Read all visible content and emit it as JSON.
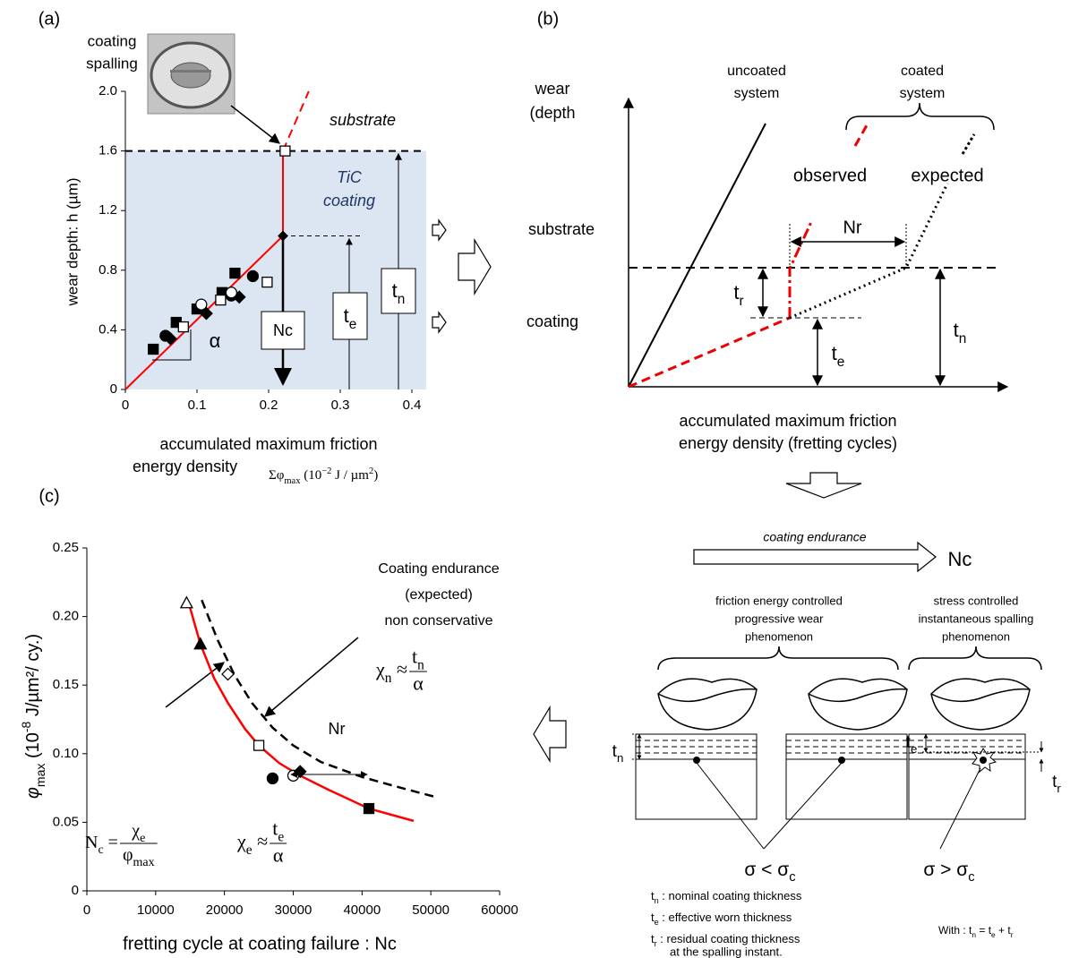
{
  "chart_data": [
    {
      "type": "scatter",
      "panel_label": "(a)",
      "y_label": "wear depth: h (µm)",
      "x_label": [
        "accumulated maximum friction",
        "energy density"
      ],
      "x_unit": [
        {
          "t": "Σφ"
        },
        {
          "sub": "max"
        },
        {
          "t": " (10"
        },
        {
          "sup": "−2"
        },
        {
          "t": " J / µm"
        },
        {
          "sup": "2"
        },
        {
          "t": ")"
        }
      ],
      "xlim": [
        0,
        0.42
      ],
      "ylim": [
        0,
        2
      ],
      "xticks": [
        0,
        0.1,
        0.2,
        0.3,
        0.4
      ],
      "yticks": [
        0,
        0.4,
        0.8,
        1.2,
        1.6,
        {
          "value": 2,
          "label": "2.0"
        }
      ],
      "series": [
        {
          "marker": "square",
          "filled": true,
          "color": "#000000",
          "x": [
            0.039,
            0.071,
            0.1,
            0.135,
            0.153
          ],
          "values": [
            0.27,
            0.45,
            0.54,
            0.65,
            0.78
          ]
        },
        {
          "marker": "circle",
          "filled": true,
          "color": "#000000",
          "x": [
            0.056,
            0.148,
            0.178
          ],
          "values": [
            0.36,
            0.63,
            0.76
          ]
        },
        {
          "marker": "diamond",
          "filled": true,
          "color": "#000000",
          "x": [
            0.063,
            0.113,
            0.159
          ],
          "values": [
            0.34,
            0.51,
            0.62
          ]
        },
        {
          "marker": "square",
          "filled": false,
          "color": "#000000",
          "x": [
            0.081,
            0.133,
            0.198,
            0.223
          ],
          "values": [
            0.42,
            0.6,
            0.72,
            1.6
          ]
        },
        {
          "marker": "circle",
          "filled": false,
          "color": "#000000",
          "x": [
            0.106,
            0.148
          ],
          "values": [
            0.57,
            0.65
          ]
        }
      ],
      "fit_line": {
        "color": "#ff0000",
        "x": [
          0,
          0.22,
          0.22
        ],
        "values": [
          0,
          1.03,
          1.6
        ]
      },
      "extrapolation": {
        "color": "#ff0000",
        "x": [
          0.22,
          0.256
        ],
        "values": [
          1.6,
          2.0
        ]
      },
      "transition": {
        "x": 0.22,
        "y": 1.03
      },
      "spalling_threshold": 1.6,
      "coating_region_color": "#dce6f2",
      "annotations": {
        "coating_spalling": [
          "coating",
          "spalling"
        ],
        "substrate": "substrate",
        "tic_coating": [
          "TiC",
          "coating"
        ],
        "slope": "α",
        "nc": "Nc",
        "te": [
          {
            "t": "t"
          },
          {
            "sub": "e"
          }
        ],
        "tn": [
          {
            "t": "t"
          },
          {
            "sub": "n"
          }
        ]
      }
    },
    {
      "type": "scatter",
      "panel_label": "(c)",
      "y_label": [
        {
          "i": "φ"
        },
        {
          "sub": "max"
        },
        {
          "t": " (10"
        },
        {
          "sup": "-8"
        },
        {
          "t": " J/µm²/ cy.)"
        }
      ],
      "x_label": "fretting cycle at coating failure : Nc",
      "xlim": [
        0,
        60000
      ],
      "ylim": [
        0,
        0.25
      ],
      "xticks": [
        0,
        10000,
        20000,
        30000,
        40000,
        50000,
        60000
      ],
      "yticks": [
        0,
        0.05,
        {
          "value": 0.1,
          "label": "0.10"
        },
        0.15,
        {
          "value": 0.2,
          "label": "0.20"
        },
        0.25
      ],
      "series": [
        {
          "marker": "triangle",
          "filled": false,
          "color": "#000000",
          "x": [
            14500
          ],
          "values": [
            0.21
          ]
        },
        {
          "marker": "triangle",
          "filled": true,
          "color": "#000000",
          "x": [
            16500
          ],
          "values": [
            0.18
          ]
        },
        {
          "marker": "diamond",
          "filled": false,
          "color": "#000000",
          "x": [
            20500
          ],
          "values": [
            0.158
          ]
        },
        {
          "marker": "square",
          "filled": false,
          "color": "#000000",
          "x": [
            25000
          ],
          "values": [
            0.106
          ]
        },
        {
          "marker": "circle",
          "filled": true,
          "color": "#000000",
          "x": [
            27000
          ],
          "values": [
            0.082
          ]
        },
        {
          "marker": "circle",
          "filled": false,
          "color": "#000000",
          "x": [
            30000
          ],
          "values": [
            0.084
          ]
        },
        {
          "marker": "diamond",
          "filled": true,
          "color": "#000000",
          "x": [
            31000
          ],
          "values": [
            0.087
          ]
        },
        {
          "marker": "square",
          "filled": true,
          "color": "#000000",
          "x": [
            41000
          ],
          "values": [
            0.06
          ]
        }
      ],
      "model_curve": {
        "color": "#ff0000",
        "dashed": false,
        "x": [
          14800,
          16500,
          18500,
          20500,
          23000,
          25000,
          28000,
          31000,
          35000,
          41000,
          47500
        ],
        "values": [
          0.21,
          0.18,
          0.155,
          0.137,
          0.118,
          0.106,
          0.093,
          0.084,
          0.074,
          0.06,
          0.051
        ]
      },
      "expected_curve": {
        "color": "#000000",
        "dashed": true,
        "x": [
          16700,
          19000,
          21500,
          24000,
          27000,
          30000,
          34000,
          40000,
          45000,
          51000
        ],
        "values": [
          0.212,
          0.183,
          0.157,
          0.137,
          0.119,
          0.106,
          0.094,
          0.083,
          0.076,
          0.068
        ]
      },
      "annotations": {
        "endurance": [
          "Coating endurance",
          "(expected)",
          "non conservative"
        ],
        "nr": "Nr",
        "chi_n": {
          "lhs": [
            {
              "t": "χ"
            },
            {
              "sub": "n"
            },
            {
              "t": " ≈ "
            }
          ],
          "num": [
            {
              "t": "t"
            },
            {
              "sub": "n"
            }
          ],
          "den": "α"
        },
        "nc": {
          "lhs": [
            {
              "t": "N"
            },
            {
              "sub": "c"
            },
            {
              "t": " = "
            }
          ],
          "num": [
            {
              "t": "χ"
            },
            {
              "sub": "e"
            }
          ],
          "den": [
            {
              "t": "φ"
            },
            {
              "sub": "max"
            }
          ]
        },
        "chi_e": {
          "lhs": [
            {
              "t": "χ"
            },
            {
              "sub": "e"
            },
            {
              "t": " ≈ "
            }
          ],
          "num": [
            {
              "t": "t"
            },
            {
              "sub": "e"
            }
          ],
          "den": "α"
        }
      }
    }
  ],
  "panel_b": {
    "panel_label": "(b)",
    "y_label": [
      "wear",
      "(depth"
    ],
    "x_label": [
      "accumulated maximum friction",
      "energy density (fretting cycles)"
    ],
    "uncoated": [
      "uncoated",
      "system"
    ],
    "coated": [
      "coated",
      "system"
    ],
    "observed": "observed",
    "expected": "expected",
    "substrate": "substrate",
    "coating": "coating",
    "nr": "Nr",
    "tr": [
      {
        "t": "t"
      },
      {
        "sub": "r"
      }
    ],
    "te": [
      {
        "t": "t"
      },
      {
        "sub": "e"
      }
    ],
    "tn": [
      {
        "t": "t"
      },
      {
        "sub": "n"
      }
    ]
  },
  "panel_d": {
    "endurance": "coating endurance",
    "nc": "Nc",
    "progressive": [
      "friction energy controlled",
      "progressive wear",
      "phenomenon"
    ],
    "instant": [
      "stress controlled",
      "instantaneous spalling",
      "phenomenon"
    ],
    "sigma_lt": [
      {
        "t": "σ < σ"
      },
      {
        "sub": "c"
      }
    ],
    "sigma_gt": [
      {
        "t": "σ > σ"
      },
      {
        "sub": "c"
      }
    ],
    "tn": [
      {
        "t": "t"
      },
      {
        "sub": "n"
      }
    ],
    "te": [
      {
        "t": "t"
      },
      {
        "sub": "e"
      }
    ],
    "tr": [
      {
        "t": "t"
      },
      {
        "sub": "r"
      }
    ],
    "legend": [
      [
        {
          "t": "t"
        },
        {
          "sub": "n"
        },
        {
          "t": "  : nominal coating thickness"
        }
      ],
      [
        {
          "t": "t"
        },
        {
          "sub": "e"
        },
        {
          "t": " :  effective worn thickness"
        }
      ],
      [
        {
          "t": "t"
        },
        {
          "sub": "r"
        },
        {
          "t": "  : residual coating thickness"
        }
      ],
      "at the spalling instant."
    ],
    "relation": [
      {
        "t": "With : t"
      },
      {
        "sub": "n"
      },
      {
        "t": " = t"
      },
      {
        "sub": "e"
      },
      {
        "t": " + t"
      },
      {
        "sub": "r"
      }
    ]
  }
}
